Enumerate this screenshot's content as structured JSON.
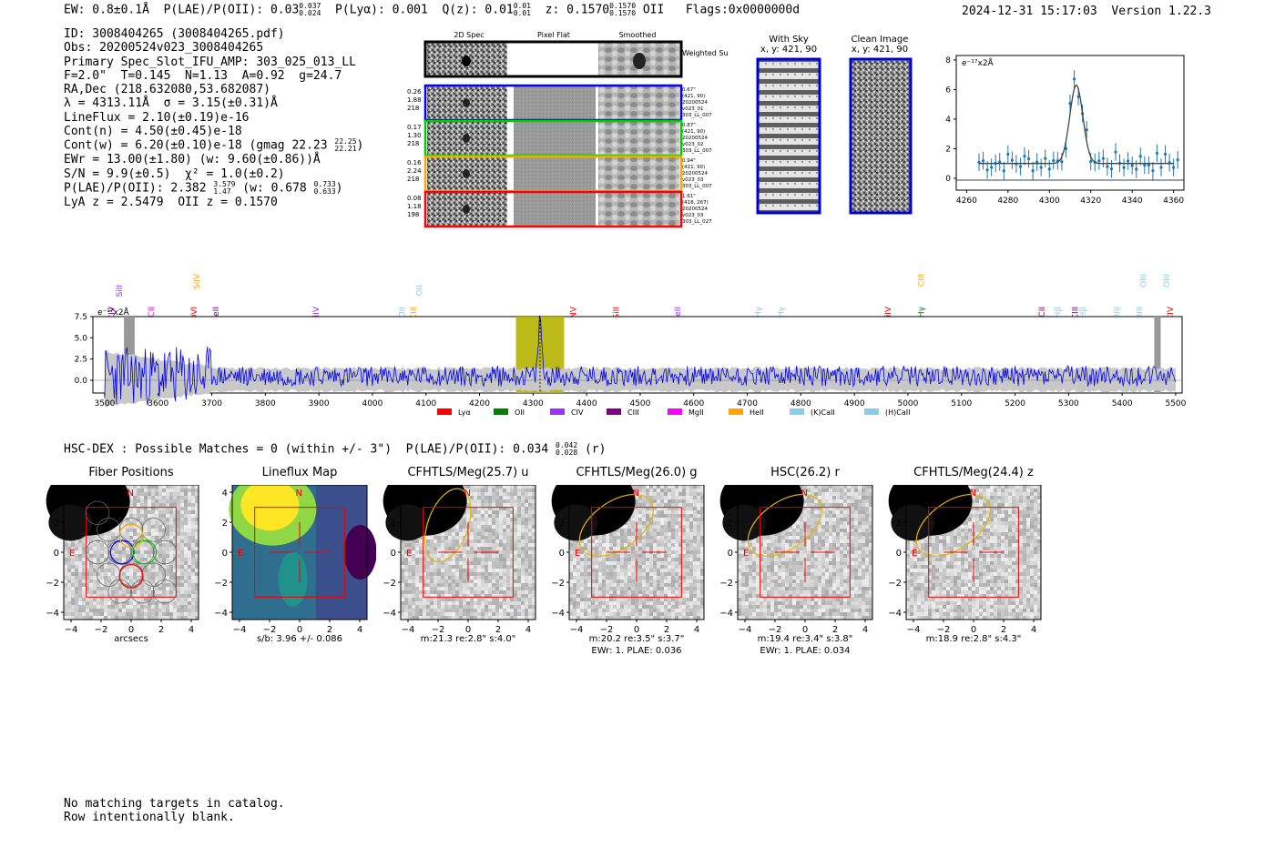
{
  "header": {
    "ew": "EW: 0.8±0.1Å",
    "plae_label": "P(LAE)/P(OII): 0.03",
    "plae_hi": "0.037",
    "plae_lo": "0.024",
    "plya": "P(Lyα): 0.001",
    "qz": "Q(z): 0.01",
    "qz_hi": "0.01",
    "qz_lo": "0.01",
    "z": "z: 0.1570",
    "z_hi": "0.1570",
    "z_lo": "0.1570",
    "z_line": "OII",
    "flags": "Flags:0x0000000d",
    "datetime": "2024-12-31 15:17:03",
    "version": "Version 1.22.3"
  },
  "info": {
    "id": "ID: 3008404265 (3008404265.pdf)",
    "obs": "Obs: 20200524v023_3008404265",
    "primary": "Primary Spec_Slot_IFU_AMP: 303_025_013_LL",
    "fit": "F=2.0\"  T=0.145  N=1.13  A=0.92  g=24.7",
    "radec": "RA,Dec (218.632080,53.682087)",
    "lambda": "λ = 4313.11Å  σ = 3.15(±0.31)Å",
    "lineflux": "LineFlux = 2.10(±0.19)e-16",
    "contn": "Cont(n) = 4.50(±0.45)e-18",
    "contw": "Cont(w) = 6.20(±0.10)e-18 (gmag 22.23",
    "gmag_hi": "22.25",
    "gmag_lo": "22.21",
    "ewr": "EWr = 13.00(±1.80) (w: 9.60(±0.86))Å",
    "sn": "S/N = 9.9(±0.5)  χ² = 1.0(±0.2)",
    "plae": "P(LAE)/P(OII): 2.382",
    "plae_hi": "3.579",
    "plae_lo": "1.47",
    "plae_w": "(w: 0.678",
    "plae_w_hi": "0.733",
    "plae_w_lo": "0.633",
    "lya_z": "LyA z = 2.5479  OII z = 0.1570"
  },
  "cutouts": {
    "col_2d": "2D Spec",
    "col_flat": "Pixel Flat",
    "col_smooth": "Smoothed",
    "weighted": "Weighted Sum",
    "rows": [
      {
        "left": [
          "0.26",
          "1.88",
          "218"
        ],
        "right": [
          "0.67\"",
          "(421, 90)",
          "20200524",
          "v023_01",
          "303_LL_007"
        ],
        "color": "#0000ff"
      },
      {
        "left": [
          "0.17",
          "1.30",
          "218"
        ],
        "right": [
          "0.87\"",
          "(421, 90)",
          "20200524",
          "v023_02",
          "303_LL_007"
        ],
        "color": "#00cc00"
      },
      {
        "left": [
          "0.16",
          "2.24",
          "218"
        ],
        "right": [
          "0.94\"",
          "(421, 90)",
          "20200524",
          "v023_03",
          "303_LL_007"
        ],
        "color": "#ffa500"
      },
      {
        "left": [
          "0.08",
          "1.18",
          "198"
        ],
        "right": [
          "1.61\"",
          "(418, 267)",
          "20200524",
          "v023_03",
          "303_LL_027"
        ],
        "color": "#ff0000"
      }
    ]
  },
  "skyimages": {
    "with_sky": "With Sky",
    "with_sky_xy": "x, y: 421, 90",
    "clean": "Clean Image",
    "clean_xy": "x, y: 421, 90"
  },
  "zoom_plot": {
    "unit": "e⁻¹⁷x2Å",
    "yticks": [
      "0",
      "2",
      "4",
      "6",
      "8"
    ],
    "xticks": [
      "4260",
      "4280",
      "4300",
      "4320",
      "4340",
      "4360"
    ]
  },
  "spectrum": {
    "unit": "e⁻¹⁷x2Å",
    "yticks": [
      "0.0",
      "2.5",
      "5.0",
      "7.5"
    ],
    "xticks": [
      "3500",
      "3600",
      "3700",
      "3800",
      "3900",
      "4000",
      "4100",
      "4200",
      "4300",
      "4400",
      "4500",
      "4600",
      "4700",
      "4800",
      "4900",
      "5000",
      "5100",
      "5200",
      "5300",
      "5400",
      "5500"
    ],
    "lines": [
      {
        "label": "CIV",
        "x": 3513,
        "row": 0,
        "color": "#800080"
      },
      {
        "label": "SiII",
        "x": 3527,
        "row": 1,
        "color": "#9933ff"
      },
      {
        "label": "CII",
        "x": 3587,
        "row": 0,
        "color": "#ff00ff"
      },
      {
        "label": "OVI",
        "x": 3667,
        "row": 0,
        "color": "#ff0000"
      },
      {
        "label": "SiIV",
        "x": 3672,
        "row": 2,
        "color": "#ffa500"
      },
      {
        "label": "HeII",
        "x": 3708,
        "row": 0,
        "color": "#800080"
      },
      {
        "label": "SiIV",
        "x": 3895,
        "row": 0,
        "color": "#9933ff"
      },
      {
        "label": "OII",
        "x": 4055,
        "row": 0,
        "color": "#87ceeb"
      },
      {
        "label": "CIII",
        "x": 4077,
        "row": 0,
        "color": "#ffa500"
      },
      {
        "label": "OII",
        "x": 4088,
        "row": 1,
        "color": "#87ceeb"
      },
      {
        "label": "NV",
        "x": 4375,
        "row": 0,
        "color": "#ff0000"
      },
      {
        "label": "SiII",
        "x": 4455,
        "row": 0,
        "color": "#ff0000"
      },
      {
        "label": "HeII",
        "x": 4570,
        "row": 0,
        "color": "#9933ff"
      },
      {
        "label": "Hγ",
        "x": 4720,
        "row": 0,
        "color": "#87ceeb"
      },
      {
        "label": "Hγ",
        "x": 4763,
        "row": 0,
        "color": "#87ceeb"
      },
      {
        "label": "SiIV",
        "x": 4963,
        "row": 0,
        "color": "#ff0000"
      },
      {
        "label": "CIII",
        "x": 5025,
        "row": 2,
        "color": "#ffa500"
      },
      {
        "label": "Hγ",
        "x": 5025,
        "row": 0,
        "color": "#008000"
      },
      {
        "label": "CII",
        "x": 5250,
        "row": 0,
        "color": "#800080"
      },
      {
        "label": "Hβ",
        "x": 5280,
        "row": 0,
        "color": "#87ceeb"
      },
      {
        "label": "CIII",
        "x": 5312,
        "row": 0,
        "color": "#800080"
      },
      {
        "label": "Hβ",
        "x": 5327,
        "row": 0,
        "color": "#87ceeb"
      },
      {
        "label": "OIII",
        "x": 5390,
        "row": 0,
        "color": "#87ceeb"
      },
      {
        "label": "OIII",
        "x": 5432,
        "row": 0,
        "color": "#87ceeb"
      },
      {
        "label": "OIII",
        "x": 5440,
        "row": 2,
        "color": "#87ceeb"
      },
      {
        "label": "OIII",
        "x": 5483,
        "row": 2,
        "color": "#87ceeb"
      },
      {
        "label": "CIV",
        "x": 5490,
        "row": 0,
        "color": "#ff0000"
      }
    ],
    "legend": [
      {
        "label": "Lyα",
        "color": "#ff0000"
      },
      {
        "label": "OII",
        "color": "#008000"
      },
      {
        "label": "CIV",
        "color": "#9933ff"
      },
      {
        "label": "CIII",
        "color": "#800080"
      },
      {
        "label": "MgII",
        "color": "#ff00ff"
      },
      {
        "label": "HeII",
        "color": "#ffa500"
      },
      {
        "label": "(K)CaII",
        "color": "#87ceeb"
      },
      {
        "label": "(H)CaII",
        "color": "#87ceeb"
      }
    ]
  },
  "hsc": {
    "label": "HSC-DEX : Possible Matches = 0 (within +/- 3\")  P(LAE)/P(OII): 0.034",
    "hi": "0.042",
    "lo": "0.028",
    "band": "(r)"
  },
  "panels": [
    {
      "title": "Fiber Positions",
      "xlabel": "arcsecs",
      "extra": ""
    },
    {
      "title": "Lineflux Map",
      "xlabel": "s/b: 3.96 +/- 0.086",
      "extra": ""
    },
    {
      "title": "CFHTLS/Meg(25.7) u",
      "xlabel": "m:21.3  re:2.8\"  s:4.0\"",
      "extra": ""
    },
    {
      "title": "CFHTLS/Meg(26.0) g",
      "xlabel": "m:20.2  re:3.5\"  s:3.7\"",
      "extra": "EWr: 1. PLAE: 0.036"
    },
    {
      "title": "HSC(26.2) r",
      "xlabel": "m:19.4  re:3.4\"  s:3.8\"",
      "extra": "EWr: 1. PLAE: 0.034"
    },
    {
      "title": "CFHTLS/Meg(24.4) z",
      "xlabel": "m:18.9  re:2.8\"  s:4.3\"",
      "extra": ""
    }
  ],
  "panel_ticks": [
    "4",
    "2",
    "0",
    "−2",
    "−4"
  ],
  "panel_xticks": [
    "−4",
    "−2",
    "0",
    "2",
    "4"
  ],
  "compass": {
    "n": "N",
    "e": "E"
  },
  "footer": {
    "line1": "No matching targets in catalog.",
    "line2": "Row intentionally blank."
  }
}
